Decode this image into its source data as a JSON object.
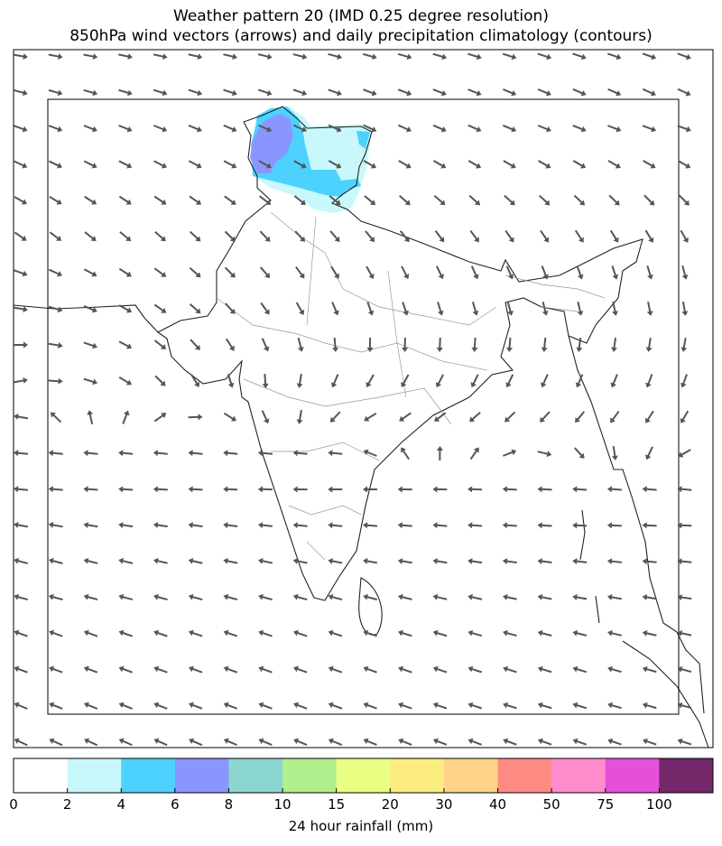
{
  "title_line1": "Weather pattern 20 (IMD 0.25 degree resolution)",
  "title_line2": "850hPa wind vectors (arrows) and daily precipitation climatology (contours)",
  "colorbar": {
    "label": "24 hour rainfall (mm)",
    "ticks": [
      "0",
      "2",
      "4",
      "6",
      "8",
      "10",
      "15",
      "20",
      "30",
      "40",
      "50",
      "75",
      "100"
    ],
    "colors": [
      "#ffffff",
      "#c8f8fc",
      "#4dd2ff",
      "#8a96ff",
      "#8cd6d2",
      "#b0ee8e",
      "#e8ff82",
      "#fbec80",
      "#ffd28a",
      "#ff8a84",
      "#ff8ccc",
      "#e650d8",
      "#74286a"
    ]
  },
  "precipitation": {
    "region": "Jammu & Kashmir",
    "levels_present_mm": [
      "2-4",
      "4-6",
      "6-8"
    ]
  },
  "wind": {
    "arrow_color": "#555555",
    "grid_rows": 20,
    "grid_cols": 20,
    "direction_deg_by_row_west_center_east": [
      [
        -10,
        -15,
        -20
      ],
      [
        -15,
        -20,
        -25
      ],
      [
        -20,
        -25,
        -20
      ],
      [
        -25,
        -30,
        -30
      ],
      [
        -30,
        -40,
        -45
      ],
      [
        -35,
        -50,
        -60
      ],
      [
        -20,
        -60,
        -75
      ],
      [
        -10,
        -70,
        -80
      ],
      [
        0,
        -90,
        -100
      ],
      [
        10,
        -120,
        -110
      ],
      [
        170,
        -150,
        -120
      ],
      [
        175,
        175,
        -150
      ],
      [
        175,
        180,
        175
      ],
      [
        170,
        175,
        178
      ],
      [
        165,
        170,
        175
      ],
      [
        165,
        165,
        172
      ],
      [
        160,
        162,
        168
      ],
      [
        160,
        160,
        165
      ],
      [
        158,
        160,
        165
      ],
      [
        155,
        158,
        162
      ]
    ]
  }
}
